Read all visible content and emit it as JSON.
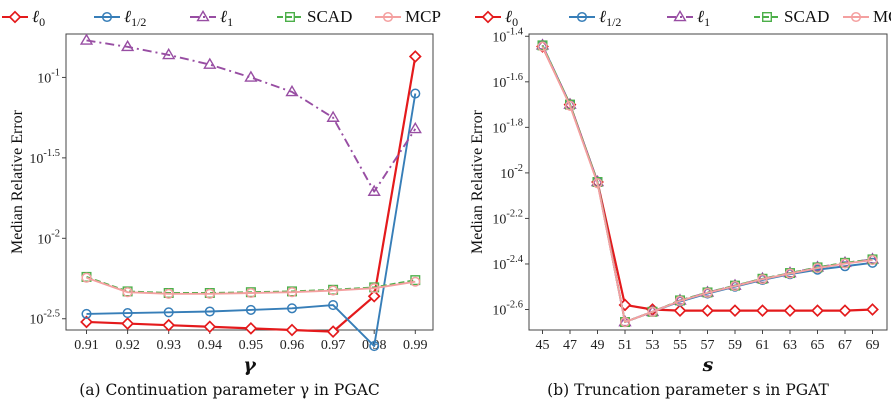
{
  "colors": {
    "l0": "#e41a1c",
    "lhalf": "#377eb8",
    "l1": "#984ea3",
    "scad": "#4daf4a",
    "mcp": "#f4a0a0"
  },
  "chart_data": [
    {
      "type": "line",
      "caption": "(a) Continuation parameter γ in PGAC",
      "xlabel": "γ",
      "ylabel": "Median Relative Error",
      "x": [
        0.91,
        0.92,
        0.93,
        0.94,
        0.95,
        0.96,
        0.97,
        0.98,
        0.99
      ],
      "x_tick_labels": [
        "0.91",
        "0.92",
        "0.93",
        "0.94",
        "0.95",
        "0.96",
        "0.97",
        "0.98",
        "0.99"
      ],
      "y_scale": "log10",
      "y_range_log10": [
        -2.57,
        -0.73
      ],
      "y_ticks_log10": [
        -2.5,
        -2,
        -1.5,
        -1
      ],
      "y_tick_labels": [
        {
          "base": "10",
          "exp": "-2.5"
        },
        {
          "base": "10",
          "exp": "-2"
        },
        {
          "base": "10",
          "exp": "-1.5"
        },
        {
          "base": "10",
          "exp": "-1"
        }
      ],
      "grid": false,
      "legend": "top",
      "series": [
        {
          "key": "l0",
          "name": "ℓ0",
          "marker": "diamond",
          "dash": "solid",
          "log10_values": [
            -2.52,
            -2.53,
            -2.54,
            -2.55,
            -2.56,
            -2.57,
            -2.58,
            -2.36,
            -0.87
          ]
        },
        {
          "key": "lhalf",
          "name": "ℓ1/2",
          "marker": "circle",
          "dash": "solid",
          "log10_values": [
            -2.47,
            -2.465,
            -2.46,
            -2.455,
            -2.445,
            -2.435,
            -2.415,
            -2.67,
            -1.1
          ]
        },
        {
          "key": "l1",
          "name": "ℓ1",
          "marker": "triangle",
          "dash": "dashdot",
          "log10_values": [
            -0.77,
            -0.81,
            -0.86,
            -0.92,
            -1.0,
            -1.09,
            -1.25,
            -1.71,
            -1.32
          ]
        },
        {
          "key": "scad",
          "name": "SCAD",
          "marker": "square",
          "dash": "dashed",
          "log10_values": [
            -2.24,
            -2.33,
            -2.34,
            -2.34,
            -2.335,
            -2.33,
            -2.32,
            -2.305,
            -2.26
          ]
        },
        {
          "key": "mcp",
          "name": "MCP",
          "marker": "circle",
          "dash": "solid",
          "log10_values": [
            -2.245,
            -2.335,
            -2.345,
            -2.345,
            -2.34,
            -2.335,
            -2.325,
            -2.31,
            -2.27
          ]
        }
      ]
    },
    {
      "type": "line",
      "caption": "(b) Truncation parameter s in PGAT",
      "xlabel": "s",
      "ylabel": "Median Relative Error",
      "x": [
        45,
        47,
        49,
        51,
        53,
        55,
        57,
        59,
        61,
        63,
        65,
        67,
        69
      ],
      "x_tick_labels": [
        "45",
        "47",
        "49",
        "51",
        "53",
        "55",
        "57",
        "59",
        "61",
        "63",
        "65",
        "67",
        "69"
      ],
      "y_scale": "log10",
      "y_range_log10": [
        -2.69,
        -1.39
      ],
      "y_ticks_log10": [
        -2.6,
        -2.4,
        -2.2,
        -2,
        -1.8,
        -1.6,
        -1.4
      ],
      "y_tick_labels": [
        {
          "base": "10",
          "exp": "-2.6"
        },
        {
          "base": "10",
          "exp": "-2.4"
        },
        {
          "base": "10",
          "exp": "-2.2"
        },
        {
          "base": "10",
          "exp": "-2"
        },
        {
          "base": "10",
          "exp": "-1.8"
        },
        {
          "base": "10",
          "exp": "-1.6"
        },
        {
          "base": "10",
          "exp": "-1.4"
        }
      ],
      "grid": false,
      "legend": "top",
      "series": [
        {
          "key": "l0",
          "name": "ℓ0",
          "marker": "diamond",
          "dash": "solid",
          "log10_values": [
            -1.445,
            -1.7,
            -2.04,
            -2.58,
            -2.6,
            -2.605,
            -2.605,
            -2.605,
            -2.605,
            -2.605,
            -2.605,
            -2.605,
            -2.6
          ]
        },
        {
          "key": "lhalf",
          "name": "ℓ1/2",
          "marker": "circle",
          "dash": "solid",
          "log10_values": [
            -1.44,
            -1.7,
            -2.04,
            -2.655,
            -2.61,
            -2.565,
            -2.53,
            -2.5,
            -2.47,
            -2.445,
            -2.425,
            -2.41,
            -2.395
          ]
        },
        {
          "key": "l1",
          "name": "ℓ1",
          "marker": "triangle",
          "dash": "dashdot",
          "log10_values": [
            -1.44,
            -1.7,
            -2.04,
            -2.655,
            -2.61,
            -2.56,
            -2.525,
            -2.495,
            -2.465,
            -2.44,
            -2.415,
            -2.395,
            -2.38
          ]
        },
        {
          "key": "scad",
          "name": "SCAD",
          "marker": "square",
          "dash": "dashed",
          "log10_values": [
            -1.44,
            -1.7,
            -2.04,
            -2.655,
            -2.61,
            -2.56,
            -2.525,
            -2.495,
            -2.465,
            -2.44,
            -2.415,
            -2.395,
            -2.38
          ]
        },
        {
          "key": "mcp",
          "name": "MCP",
          "marker": "circle",
          "dash": "solid",
          "log10_values": [
            -1.445,
            -1.705,
            -2.045,
            -2.655,
            -2.61,
            -2.562,
            -2.527,
            -2.497,
            -2.467,
            -2.442,
            -2.418,
            -2.398,
            -2.383
          ]
        }
      ]
    }
  ]
}
